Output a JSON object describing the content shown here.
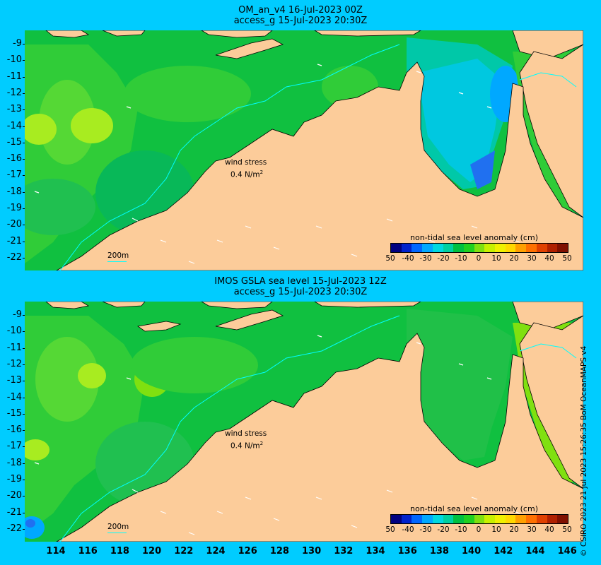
{
  "panels": [
    {
      "title_line1": "OM_an_v4  16-Jul-2023 00Z",
      "title_line2": "access_g 15-Jul-2023 20:30Z",
      "wind_stress_label": "wind stress",
      "wind_stress_value": "0.4 N/m",
      "wind_stress_exp": "2",
      "depth_label": "200m",
      "colorbar_title": "non-tidal sea level anomaly (cm)"
    },
    {
      "title_line1": "IMOS GSLA sea level  15-Jul-2023 12Z",
      "title_line2": "access_g 15-Jul-2023 20:30Z",
      "wind_stress_label": "wind stress",
      "wind_stress_value": "0.4 N/m",
      "wind_stress_exp": "2",
      "depth_label": "200m",
      "colorbar_title": "non-tidal sea level anomaly (cm)"
    }
  ],
  "latitude_labels": [
    "-9",
    "-10",
    "-11",
    "-12",
    "-13",
    "-14",
    "-15",
    "-16",
    "-17",
    "-18",
    "-19",
    "-20",
    "-21",
    "-22"
  ],
  "longitude_labels": [
    "114",
    "116",
    "118",
    "120",
    "122",
    "124",
    "126",
    "128",
    "130",
    "132",
    "134",
    "136",
    "138",
    "140",
    "142",
    "144",
    "146"
  ],
  "colorbar_ticks": [
    "50",
    "-40",
    "-30",
    "-20",
    "-10",
    "0",
    "10",
    "20",
    "30",
    "40",
    "50"
  ],
  "colorbar_colors": [
    "#000080",
    "#0022cc",
    "#0066ff",
    "#00a8ff",
    "#00d8e0",
    "#00d0a0",
    "#00c040",
    "#20d020",
    "#80e010",
    "#c8f000",
    "#f0f000",
    "#ffd800",
    "#ffa000",
    "#ff7000",
    "#e04000",
    "#b02000",
    "#801000"
  ],
  "credit": "© CSIRO 2023   21 Jul 2023 15:26:35 BoM OceanMAPS v4",
  "colors": {
    "background": "#00ccff",
    "land": "#fccc9a",
    "ocean_base": "#10c040"
  }
}
